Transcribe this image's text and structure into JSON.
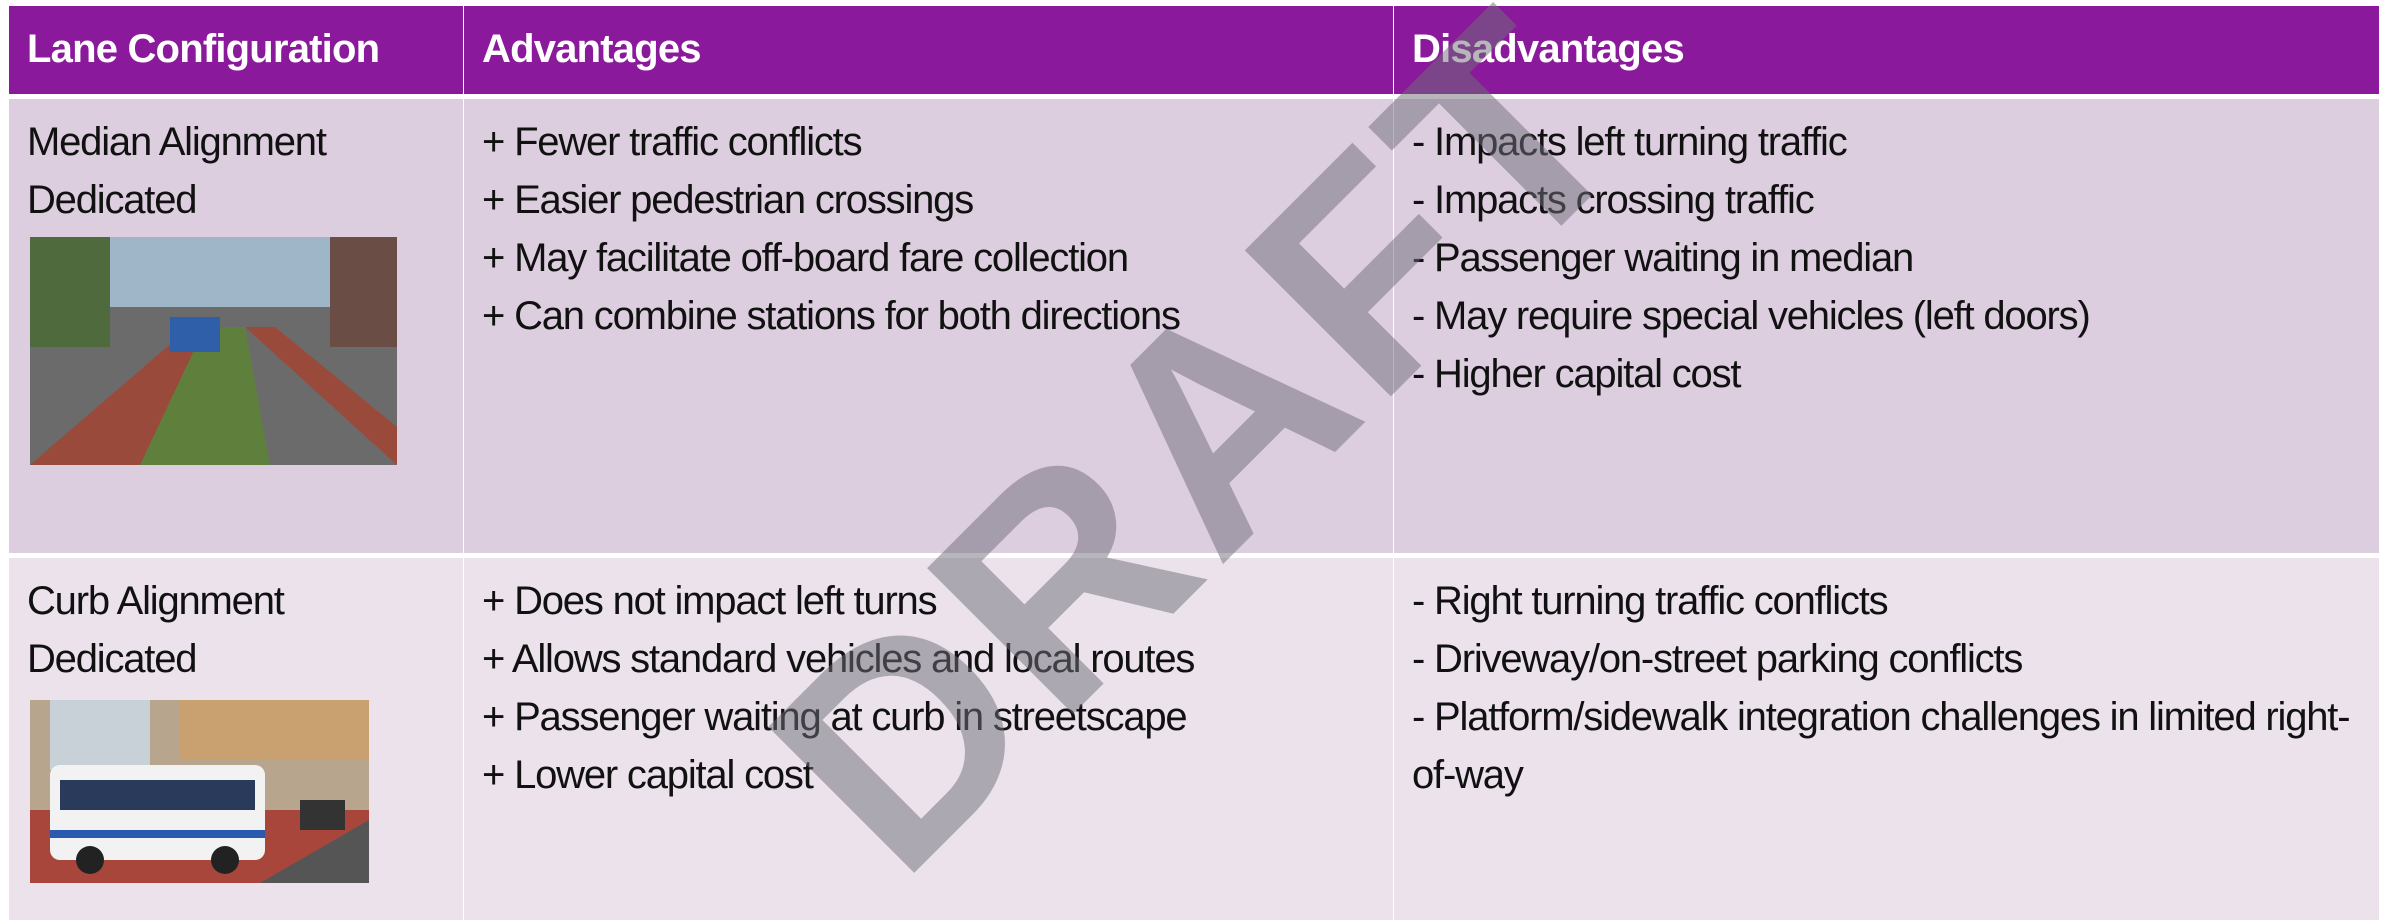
{
  "table": {
    "header": [
      "Lane Configuration",
      "Advantages",
      "Disadvantages"
    ],
    "rows": [
      {
        "name": [
          "Median Alignment",
          "Dedicated"
        ],
        "advantages": [
          "+  Fewer traffic conflicts",
          "+  Easier pedestrian crossings",
          "+  May facilitate off-board fare collection",
          "+  Can combine stations for both directions"
        ],
        "disadvantages": [
          "-  Impacts left turning traffic",
          "-  Impacts crossing traffic",
          "-  Passenger waiting in median",
          "-  May require special vehicles (left doors)",
          "-  Higher capital cost"
        ]
      },
      {
        "name": [
          "Curb Alignment",
          "Dedicated"
        ],
        "advantages": [
          "+  Does not impact left turns",
          "+  Allows standard vehicles and local routes",
          "+  Passenger waiting at curb in streetscape",
          "+  Lower capital cost"
        ],
        "disadvantages": [
          "-  Right turning traffic conflicts",
          "-  Driveway/on-street parking conflicts",
          "-  Platform/sidewalk integration challenges in limited right-of-way"
        ]
      }
    ]
  },
  "watermark": "DRAFT"
}
